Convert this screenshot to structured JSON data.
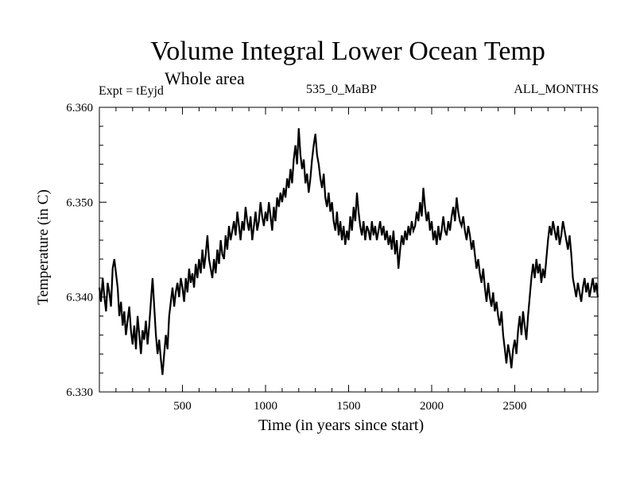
{
  "chart_data": {
    "type": "line",
    "title": "Volume Integral Lower Ocean Temp",
    "subtitle": "Whole area",
    "annotations": {
      "left": "Expt = tEyjd",
      "center": "535_0_MaBP",
      "right": "ALL_MONTHS"
    },
    "xlabel": "Time (in years since start)",
    "ylabel": "Temperature (in C)",
    "xlim": [
      0,
      3000
    ],
    "ylim": [
      6.33,
      6.36
    ],
    "x_ticks": [
      500,
      1000,
      1500,
      2000,
      2500
    ],
    "x_tick_labels": [
      "500",
      "1000",
      "1500",
      "2000",
      "2500"
    ],
    "x_minor_step": 100,
    "y_ticks": [
      6.33,
      6.34,
      6.35,
      6.36
    ],
    "y_tick_labels": [
      "6.330",
      "6.340",
      "6.350",
      "6.360"
    ],
    "y_minor_step": 0.002,
    "grid": false,
    "line_color": "#000000",
    "series": [
      {
        "name": "Volume Integral Lower Ocean Temp",
        "x_start": 0,
        "x_step": 10,
        "values": [
          6.341,
          6.3395,
          6.342,
          6.34,
          6.3385,
          6.3415,
          6.3405,
          6.339,
          6.343,
          6.344,
          6.3425,
          6.341,
          6.338,
          6.3395,
          6.337,
          6.3385,
          6.336,
          6.3375,
          6.339,
          6.3365,
          6.335,
          6.337,
          6.3345,
          6.338,
          6.336,
          6.334,
          6.3365,
          6.3355,
          6.3375,
          6.335,
          6.337,
          6.3395,
          6.342,
          6.339,
          6.336,
          6.334,
          6.3355,
          6.3335,
          6.3318,
          6.334,
          6.336,
          6.3345,
          6.338,
          6.3395,
          6.341,
          6.339,
          6.3405,
          6.3415,
          6.34,
          6.342,
          6.341,
          6.3395,
          6.342,
          6.3405,
          6.343,
          6.3415,
          6.3425,
          6.341,
          6.3435,
          6.342,
          6.344,
          6.3425,
          6.345,
          6.343,
          6.3445,
          6.3465,
          6.344,
          6.343,
          6.342,
          6.344,
          6.3425,
          6.345,
          6.3435,
          6.346,
          6.3445,
          6.344,
          6.3465,
          6.345,
          6.3475,
          6.346,
          6.347,
          6.348,
          6.3465,
          6.349,
          6.3475,
          6.346,
          6.348,
          6.347,
          6.3495,
          6.348,
          6.347,
          6.3485,
          6.346,
          6.3475,
          6.349,
          6.347,
          6.348,
          6.35,
          6.3485,
          6.3475,
          6.349,
          6.348,
          6.35,
          6.3485,
          6.347,
          6.3495,
          6.348,
          6.3505,
          6.3495,
          6.351,
          6.35,
          6.3515,
          6.3505,
          6.3525,
          6.3515,
          6.3535,
          6.352,
          6.3545,
          6.356,
          6.354,
          6.3578,
          6.355,
          6.3535,
          6.3545,
          6.352,
          6.353,
          6.351,
          6.3525,
          6.3545,
          6.356,
          6.3572,
          6.355,
          6.354,
          6.3525,
          6.3515,
          6.353,
          6.3505,
          6.3495,
          6.351,
          6.349,
          6.35,
          6.348,
          6.347,
          6.349,
          6.3465,
          6.348,
          6.346,
          6.3475,
          6.3455,
          6.347,
          6.346,
          6.3485,
          6.347,
          6.3495,
          6.348,
          6.351,
          6.349,
          6.3475,
          6.3465,
          6.348,
          6.346,
          6.3475,
          6.347,
          6.346,
          6.348,
          6.3465,
          6.3475,
          6.346,
          6.347,
          6.348,
          6.3465,
          6.3475,
          6.346,
          6.347,
          6.3455,
          6.3465,
          6.345,
          6.347,
          6.3445,
          6.346,
          6.343,
          6.345,
          6.3465,
          6.3455,
          6.347,
          6.346,
          6.3475,
          6.3465,
          6.348,
          6.347,
          6.3475,
          6.349,
          6.348,
          6.35,
          6.3485,
          6.3515,
          6.3495,
          6.348,
          6.349,
          6.347,
          6.348,
          6.346,
          6.347,
          6.3455,
          6.3475,
          6.346,
          6.347,
          6.3485,
          6.347,
          6.3465,
          6.348,
          6.347,
          6.3485,
          6.3495,
          6.348,
          6.3505,
          6.349,
          6.348,
          6.3475,
          6.3485,
          6.347,
          6.346,
          6.3475,
          6.3465,
          6.345,
          6.346,
          6.3445,
          6.343,
          6.344,
          6.3425,
          6.3415,
          6.343,
          6.341,
          6.3395,
          6.3415,
          6.34,
          6.339,
          6.3405,
          6.3385,
          6.3395,
          6.338,
          6.337,
          6.3385,
          6.336,
          6.3345,
          6.333,
          6.335,
          6.334,
          6.3325,
          6.3345,
          6.3355,
          6.334,
          6.3365,
          6.338,
          6.336,
          6.3385,
          6.337,
          6.3355,
          6.338,
          6.34,
          6.342,
          6.3435,
          6.342,
          6.344,
          6.3425,
          6.3435,
          6.3415,
          6.343,
          6.342,
          6.344,
          6.346,
          6.3475,
          6.3465,
          6.348,
          6.347,
          6.346,
          6.3475,
          6.3455,
          6.3465,
          6.348,
          6.347,
          6.346,
          6.345,
          6.3465,
          6.3445,
          6.342,
          6.341,
          6.34,
          6.3415,
          6.3405,
          6.3395,
          6.341,
          6.342,
          6.3405,
          6.3415,
          6.34,
          6.341,
          6.342,
          6.3405,
          6.3415,
          6.34
        ]
      }
    ]
  }
}
